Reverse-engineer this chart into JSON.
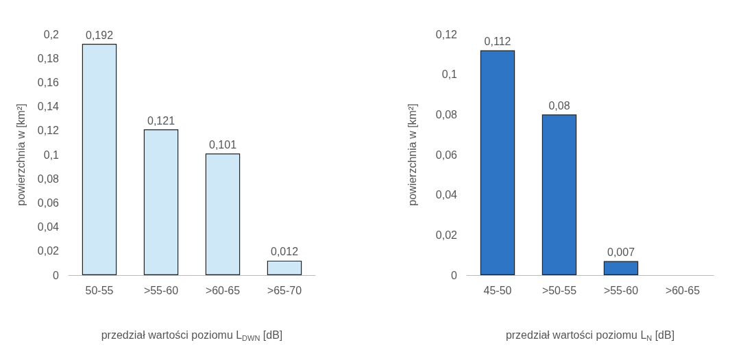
{
  "chart_data": [
    {
      "type": "bar",
      "categories": [
        "50-55",
        ">55-60",
        ">60-65",
        ">65-70"
      ],
      "values": [
        0.192,
        0.121,
        0.101,
        0.012
      ],
      "color": "#cfe8f7",
      "value_labels": [
        "0,192",
        "0,121",
        "0,101",
        "0,012"
      ],
      "ylim": [
        0,
        0.2
      ],
      "yticks": [
        0,
        {
          "value": 0.02,
          "label": "0,02"
        },
        {
          "value": 0.04,
          "label": "0,04"
        },
        {
          "value": 0.06,
          "label": "0,06"
        },
        {
          "value": 0.08,
          "label": "0,08"
        },
        {
          "value": 0.1,
          "label": "0,1"
        },
        {
          "value": 0.12,
          "label": "0,12"
        },
        {
          "value": 0.14,
          "label": "0,14"
        },
        {
          "value": 0.16,
          "label": "0,16"
        },
        {
          "value": 0.18,
          "label": "0,18"
        },
        {
          "value": 0.2,
          "label": "0,2"
        }
      ],
      "ylabel": "powierzchnia w [km²]",
      "xlabel": "przedział wartości poziomu L$_{DWN}$ [dB]",
      "grid": false
    },
    {
      "type": "bar",
      "categories": [
        "45-50",
        ">50-55",
        ">55-60",
        ">60-65"
      ],
      "values": [
        0.112,
        0.08,
        0.007,
        null
      ],
      "color": "#2e75c6",
      "value_labels": [
        "0,112",
        "0,08",
        "0,007",
        null
      ],
      "ylim": [
        0,
        0.12
      ],
      "yticks": [
        0,
        {
          "value": 0.02,
          "label": "0,02"
        },
        {
          "value": 0.04,
          "label": "0,04"
        },
        {
          "value": 0.06,
          "label": "0,06"
        },
        {
          "value": 0.08,
          "label": "0,08"
        },
        {
          "value": 0.1,
          "label": "0,1"
        },
        {
          "value": 0.12,
          "label": "0,12"
        }
      ],
      "ylabel": "powierzchnia w [km²]",
      "xlabel": "przedział wartości poziomu L$_{N}$ [dB]",
      "grid": false
    }
  ]
}
